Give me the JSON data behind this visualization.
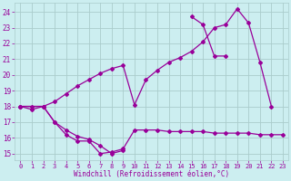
{
  "xlabel": "Windchill (Refroidissement éolien,°C)",
  "background_color": "#cceef0",
  "grid_color": "#aacccc",
  "line_color": "#990099",
  "xlim": [
    -0.5,
    23.5
  ],
  "ylim": [
    14.6,
    24.6
  ],
  "yticks": [
    15,
    16,
    17,
    18,
    19,
    20,
    21,
    22,
    23,
    24
  ],
  "xticks": [
    0,
    1,
    2,
    3,
    4,
    5,
    6,
    7,
    8,
    9,
    10,
    11,
    12,
    13,
    14,
    15,
    16,
    17,
    18,
    19,
    20,
    21,
    22,
    23
  ],
  "line1_x": [
    0,
    1,
    2,
    3,
    4,
    5,
    6,
    7,
    8,
    9,
    10,
    11,
    12,
    13,
    14,
    15,
    16,
    17,
    18,
    19,
    20,
    21,
    22,
    23
  ],
  "line1_y": [
    18.0,
    17.8,
    18.0,
    17.0,
    16.2,
    15.8,
    15.8,
    15.0,
    15.1,
    15.3,
    16.5,
    16.5,
    16.5,
    16.4,
    16.4,
    16.4,
    16.4,
    16.3,
    16.3,
    16.3,
    16.3,
    16.2,
    16.2,
    16.2
  ],
  "line2_x": [
    0,
    2,
    3,
    4,
    5,
    6,
    7,
    8,
    9,
    10,
    11,
    12,
    13,
    14,
    15,
    16,
    17,
    18,
    19,
    20,
    21,
    22
  ],
  "line2_y": [
    18.0,
    18.0,
    18.3,
    18.8,
    19.3,
    19.7,
    20.1,
    20.4,
    20.6,
    18.1,
    19.7,
    20.3,
    20.8,
    21.1,
    21.5,
    22.1,
    23.0,
    23.2,
    24.2,
    23.3,
    20.8,
    18.0
  ],
  "line3_x": [
    0,
    1,
    2,
    3,
    4,
    5,
    6,
    7,
    8,
    9,
    15,
    16,
    17,
    18
  ],
  "line3_y": [
    18.0,
    18.0,
    18.0,
    17.0,
    16.5,
    16.1,
    15.9,
    15.5,
    15.0,
    15.2,
    23.7,
    23.2,
    21.2,
    21.2
  ]
}
